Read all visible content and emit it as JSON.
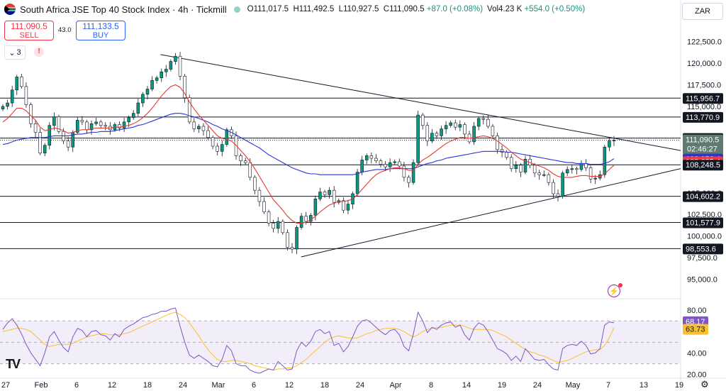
{
  "header": {
    "title": "South Africa JSE Top 40 Stock Index · 4h · Tickmill",
    "open_label": "O",
    "open": "111,017.5",
    "high_label": "H",
    "high": "111,492.5",
    "low_label": "L",
    "low": "110,927.5",
    "close_label": "C",
    "close": "111,090.5",
    "change": "+87.0 (+0.08%)",
    "vol_label": "Vol",
    "volume": "4.23 K",
    "vol_change": "+554.0 (+0.50%)"
  },
  "trade": {
    "sell_price": "111,090.5",
    "sell_label": "SELL",
    "buy_price": "111,133.5",
    "buy_label": "BUY",
    "spread": "43.0"
  },
  "indicators_count": "3",
  "currency": "ZAR",
  "colors": {
    "up": "#089981",
    "down": "#f23645",
    "ma_fast": "#e53935",
    "ma_slow": "#2b35d6",
    "rsi": "#7e57c2",
    "rsi_ma": "#fbc02d",
    "line": "#131722"
  },
  "chart_data": [
    {
      "type": "candlestick",
      "xlabel": "",
      "ylabel": "",
      "ylim": [
        93000,
        125500
      ],
      "x_ticks": [
        "27",
        "Feb",
        "6",
        "12",
        "18",
        "24",
        "Mar",
        "6",
        "12",
        "18",
        "24",
        "Apr",
        "8",
        "14",
        "19",
        "24",
        "May",
        "7",
        "13",
        "19"
      ],
      "y_ticks": [
        "122,500.0",
        "120,000.0",
        "117,500.0",
        "115,000.0",
        "105,000.0",
        "102,500.0",
        "100,000.0",
        "97,500.0",
        "95,000.0"
      ],
      "price_levels": [
        {
          "label": "115,956.7",
          "value": 115956.7,
          "style": "black"
        },
        {
          "label": "113,770.9",
          "value": 113770.9,
          "style": "black"
        },
        {
          "label": "111,336.2",
          "value": 111336.2,
          "style": "black"
        },
        {
          "label": "111,090.5",
          "value": 111090.5,
          "style": "current",
          "countdown": "02:46:27"
        },
        {
          "label": "108,956.4",
          "value": 108956.4,
          "style": "blue"
        },
        {
          "label": "108,635.4",
          "value": 108635.4,
          "style": "red"
        },
        {
          "label": "108,248.5",
          "value": 108248.5,
          "style": "black"
        },
        {
          "label": "104,602.2",
          "value": 104602.2,
          "style": "black"
        },
        {
          "label": "101,577.9",
          "value": 101577.9,
          "style": "black"
        },
        {
          "label": "98,553.6",
          "value": 98553.6,
          "style": "black"
        }
      ],
      "trendlines": [
        {
          "name": "upper",
          "from": {
            "i": 0.258,
            "v": 121000
          },
          "to": {
            "i": 1.0,
            "v": 109900
          }
        },
        {
          "name": "lower",
          "from": {
            "i": 0.488,
            "v": 97600
          },
          "to": {
            "i": 1.0,
            "v": 107800
          }
        }
      ],
      "close_series": [
        115000,
        115400,
        116900,
        118400,
        117300,
        115200,
        113000,
        112000,
        109600,
        110500,
        112800,
        113800,
        112100,
        111000,
        110300,
        112000,
        113400,
        113200,
        112300,
        113000,
        113200,
        112800,
        112700,
        112300,
        112900,
        112500,
        113200,
        113700,
        114200,
        115400,
        116400,
        117000,
        118000,
        118300,
        119000,
        119300,
        120200,
        120800,
        118500,
        116000,
        113200,
        112400,
        112700,
        112200,
        111400,
        110400,
        109800,
        110600,
        112300,
        111600,
        109300,
        108700,
        108500,
        106800,
        105300,
        104000,
        102800,
        101500,
        100900,
        101700,
        100400,
        98700,
        98500,
        101000,
        102300,
        101700,
        102400,
        104300,
        105100,
        104800,
        105300,
        103900,
        104100,
        103000,
        103700,
        104900,
        107400,
        108800,
        109300,
        109000,
        108700,
        108300,
        108000,
        108500,
        108600,
        108100,
        106800,
        106200,
        108500,
        114000,
        112800,
        111000,
        111900,
        111600,
        112400,
        112800,
        113100,
        112600,
        112900,
        111800,
        110900,
        112700,
        113600,
        113500,
        112700,
        111600,
        110000,
        109700,
        109100,
        107800,
        108200,
        107400,
        108900,
        108200,
        107300,
        107100,
        107100,
        106200,
        104900,
        104600,
        107300,
        107700,
        107800,
        107700,
        108400,
        107900,
        106600,
        106700,
        107100,
        110300,
        111000,
        111090
      ],
      "ma_fast_series": [
        113200,
        113600,
        114200,
        114800,
        114800,
        114500,
        113900,
        113400,
        112600,
        112200,
        112300,
        112500,
        112400,
        112200,
        111900,
        112000,
        112200,
        112300,
        112300,
        112400,
        112500,
        112500,
        112500,
        112500,
        112600,
        112600,
        112700,
        112800,
        113000,
        113300,
        113700,
        114200,
        114800,
        115500,
        116200,
        116800,
        117300,
        117500,
        117200,
        116500,
        115500,
        114700,
        114000,
        113400,
        112800,
        112200,
        111600,
        111300,
        111200,
        111000,
        110500,
        109900,
        109300,
        108600,
        107800,
        106900,
        106000,
        105100,
        104200,
        103600,
        103000,
        102300,
        101800,
        101500,
        101500,
        101600,
        101900,
        102300,
        102800,
        103200,
        103600,
        103800,
        104000,
        104000,
        104100,
        104300,
        104800,
        105400,
        106000,
        106600,
        107100,
        107400,
        107600,
        107800,
        107900,
        107900,
        107800,
        107600,
        107600,
        108300,
        108800,
        109100,
        109500,
        109900,
        110300,
        110700,
        111000,
        111200,
        111400,
        111400,
        111300,
        111400,
        111500,
        111600,
        111500,
        111300,
        111000,
        110600,
        110200,
        109700,
        109300,
        108900,
        108700,
        108500,
        108300,
        108100,
        107900,
        107600,
        107200,
        106900,
        106800,
        106800,
        106800,
        106900,
        107000,
        107000,
        106900,
        106900,
        106900,
        107200,
        107700,
        108200
      ],
      "ma_slow_series": [
        110600,
        110700,
        110900,
        111100,
        111200,
        111300,
        111400,
        111400,
        111400,
        111400,
        111500,
        111600,
        111600,
        111600,
        111600,
        111700,
        111800,
        111800,
        111900,
        112000,
        112000,
        112100,
        112100,
        112100,
        112200,
        112300,
        112400,
        112500,
        112600,
        112800,
        112900,
        113100,
        113300,
        113500,
        113700,
        113900,
        114100,
        114200,
        114200,
        114100,
        113900,
        113800,
        113600,
        113400,
        113200,
        112900,
        112700,
        112400,
        112200,
        112000,
        111700,
        111400,
        111100,
        110800,
        110500,
        110200,
        109800,
        109400,
        109100,
        108800,
        108500,
        108200,
        107900,
        107700,
        107500,
        107300,
        107200,
        107200,
        107100,
        107100,
        107100,
        107100,
        107100,
        107100,
        107100,
        107100,
        107200,
        107400,
        107500,
        107600,
        107700,
        107700,
        107700,
        107800,
        107800,
        107800,
        107800,
        107800,
        107800,
        108000,
        108200,
        108400,
        108500,
        108700,
        108800,
        109000,
        109100,
        109200,
        109300,
        109400,
        109500,
        109600,
        109700,
        109800,
        109800,
        109800,
        109800,
        109800,
        109700,
        109700,
        109600,
        109500,
        109400,
        109300,
        109200,
        109100,
        109000,
        108900,
        108800,
        108700,
        108600,
        108500,
        108500,
        108400,
        108400,
        108400,
        108300,
        108300,
        108300,
        108400,
        108600,
        108956
      ]
    },
    {
      "type": "line",
      "title": "",
      "xlabel": "",
      "ylabel": "",
      "ylim": [
        17,
        88
      ],
      "y_ticks": [
        "80.00",
        "40.00",
        "20.00"
      ],
      "bands": [
        70,
        50,
        30
      ],
      "current": [
        {
          "label": "68.17",
          "value": 68.17,
          "series": "rsi"
        },
        {
          "label": "63.73",
          "value": 63.73,
          "series": "rsi_ma"
        }
      ],
      "series": [
        {
          "key": "rsi",
          "values": [
            62,
            68,
            72,
            66,
            58,
            48,
            40,
            34,
            28,
            40,
            55,
            60,
            52,
            45,
            41,
            55,
            63,
            61,
            55,
            60,
            61,
            57,
            56,
            52,
            58,
            55,
            62,
            65,
            67,
            70,
            73,
            74,
            76,
            77,
            79,
            79,
            81,
            82,
            65,
            50,
            38,
            35,
            38,
            35,
            32,
            28,
            27,
            34,
            47,
            42,
            30,
            28,
            28,
            24,
            22,
            21,
            23,
            25,
            24,
            32,
            28,
            24,
            25,
            42,
            50,
            46,
            51,
            60,
            62,
            58,
            60,
            47,
            49,
            41,
            46,
            55,
            65,
            70,
            71,
            68,
            64,
            60,
            57,
            61,
            62,
            57,
            46,
            42,
            58,
            78,
            70,
            59,
            64,
            62,
            66,
            68,
            69,
            64,
            66,
            57,
            52,
            63,
            68,
            66,
            60,
            52,
            44,
            42,
            39,
            33,
            37,
            32,
            44,
            39,
            34,
            33,
            34,
            29,
            25,
            24,
            44,
            47,
            48,
            47,
            51,
            47,
            39,
            40,
            44,
            66,
            69,
            68.17
          ]
        },
        {
          "key": "rsi_ma",
          "values": [
            60,
            61,
            62,
            63,
            63,
            62,
            60,
            56,
            52,
            48,
            46,
            47,
            48,
            48,
            48,
            49,
            51,
            53,
            55,
            56,
            57,
            58,
            58,
            57,
            57,
            57,
            58,
            59,
            61,
            63,
            65,
            67,
            69,
            71,
            73,
            75,
            77,
            78,
            76,
            73,
            68,
            62,
            56,
            49,
            43,
            38,
            34,
            32,
            32,
            33,
            33,
            32,
            31,
            30,
            28,
            27,
            26,
            25,
            24,
            25,
            25,
            26,
            26,
            28,
            31,
            34,
            38,
            42,
            46,
            50,
            53,
            55,
            56,
            55,
            54,
            54,
            54,
            56,
            58,
            59,
            61,
            62,
            63,
            63,
            63,
            62,
            60,
            57,
            55,
            57,
            60,
            62,
            63,
            64,
            64,
            65,
            66,
            66,
            66,
            65,
            63,
            62,
            62,
            62,
            62,
            61,
            59,
            57,
            55,
            52,
            49,
            46,
            43,
            41,
            40,
            38,
            37,
            35,
            33,
            31,
            32,
            33,
            35,
            37,
            39,
            41,
            42,
            43,
            43,
            47,
            54,
            63.73
          ]
        }
      ]
    }
  ]
}
